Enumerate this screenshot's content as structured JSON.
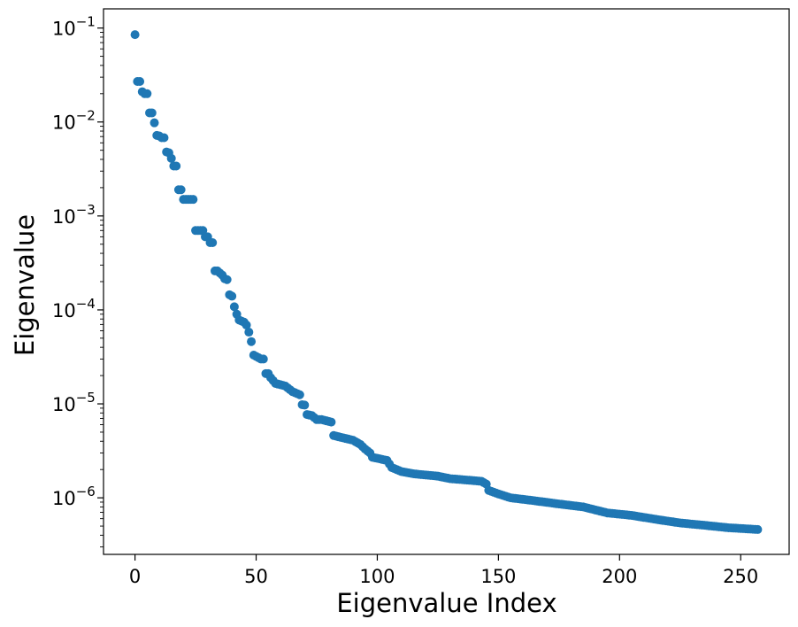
{
  "chart_data": {
    "type": "scatter",
    "xlabel": "Eigenvalue Index",
    "ylabel": "Eigenvalue",
    "xlim": [
      -13,
      270
    ],
    "ylim": [
      2.5e-07,
      0.16
    ],
    "yscale": "log",
    "grid": false,
    "marker_color": "#1f77b4",
    "x_ticks": [
      {
        "value": 0,
        "label": "0"
      },
      {
        "value": 50,
        "label": "50"
      },
      {
        "value": 100,
        "label": "100"
      },
      {
        "value": 150,
        "label": "150"
      },
      {
        "value": 200,
        "label": "200"
      },
      {
        "value": 250,
        "label": "250"
      }
    ],
    "y_ticks": [
      {
        "value": 1e-06,
        "base": "10",
        "exp": "−6"
      },
      {
        "value": 1e-05,
        "base": "10",
        "exp": "−5"
      },
      {
        "value": 0.0001,
        "base": "10",
        "exp": "−4"
      },
      {
        "value": 0.001,
        "base": "10",
        "exp": "−3"
      },
      {
        "value": 0.01,
        "base": "10",
        "exp": "−2"
      },
      {
        "value": 0.1,
        "base": "10",
        "exp": "−1"
      }
    ],
    "anchors": [
      [
        0,
        0.085
      ],
      [
        1,
        0.027
      ],
      [
        2,
        0.027
      ],
      [
        3,
        0.021
      ],
      [
        4,
        0.02
      ],
      [
        5,
        0.02
      ],
      [
        6,
        0.0125
      ],
      [
        7,
        0.0125
      ],
      [
        8,
        0.0098
      ],
      [
        9,
        0.0072
      ],
      [
        10,
        0.0071
      ],
      [
        11,
        0.0068
      ],
      [
        12,
        0.0068
      ],
      [
        13,
        0.0048
      ],
      [
        14,
        0.0047
      ],
      [
        15,
        0.0041
      ],
      [
        16,
        0.0034
      ],
      [
        17,
        0.0034
      ],
      [
        18,
        0.0019
      ],
      [
        19,
        0.0019
      ],
      [
        20,
        0.0015
      ],
      [
        24,
        0.0015
      ],
      [
        25,
        0.0007
      ],
      [
        28,
        0.0007
      ],
      [
        29,
        0.0006
      ],
      [
        30,
        0.0006
      ],
      [
        31,
        0.00052
      ],
      [
        32,
        0.00052
      ],
      [
        33,
        0.00026
      ],
      [
        34,
        0.00026
      ],
      [
        36,
        0.000235
      ],
      [
        37,
        0.000215
      ],
      [
        38,
        0.00021
      ],
      [
        39,
        0.000145
      ],
      [
        40,
        0.00014
      ],
      [
        41,
        0.000108
      ],
      [
        42,
        9e-05
      ],
      [
        43,
        7.8e-05
      ],
      [
        45,
        7.4e-05
      ],
      [
        46,
        6.9e-05
      ],
      [
        47,
        5.8e-05
      ],
      [
        48,
        4.6e-05
      ],
      [
        49,
        3.3e-05
      ],
      [
        50,
        3.2e-05
      ],
      [
        52,
        3e-05
      ],
      [
        53,
        3e-05
      ],
      [
        54,
        2.1e-05
      ],
      [
        55,
        2.1e-05
      ],
      [
        56,
        1.9e-05
      ],
      [
        58,
        1.65e-05
      ],
      [
        62,
        1.55e-05
      ],
      [
        65,
        1.35e-05
      ],
      [
        68,
        1.25e-05
      ],
      [
        69,
        9.8e-06
      ],
      [
        70,
        9.7e-06
      ],
      [
        71,
        7.7e-06
      ],
      [
        73,
        7.5e-06
      ],
      [
        75,
        6.8e-06
      ],
      [
        77,
        6.8e-06
      ],
      [
        80,
        6.5e-06
      ],
      [
        81,
        6.4e-06
      ],
      [
        82,
        4.6e-06
      ],
      [
        85,
        4.4e-06
      ],
      [
        90,
        4.1e-06
      ],
      [
        93,
        3.7e-06
      ],
      [
        95,
        3.3e-06
      ],
      [
        97,
        3e-06
      ],
      [
        98,
        2.7e-06
      ],
      [
        104,
        2.5e-06
      ],
      [
        106,
        2.1e-06
      ],
      [
        108,
        2e-06
      ],
      [
        110,
        1.9e-06
      ],
      [
        115,
        1.8e-06
      ],
      [
        125,
        1.7e-06
      ],
      [
        130,
        1.6e-06
      ],
      [
        143,
        1.5e-06
      ],
      [
        145,
        1.4e-06
      ],
      [
        146,
        1.2e-06
      ],
      [
        150,
        1.1e-06
      ],
      [
        155,
        1e-06
      ],
      [
        165,
        9.3e-07
      ],
      [
        175,
        8.6e-07
      ],
      [
        185,
        8e-07
      ],
      [
        195,
        6.9e-07
      ],
      [
        205,
        6.5e-07
      ],
      [
        215,
        5.9e-07
      ],
      [
        225,
        5.4e-07
      ],
      [
        235,
        5.1e-07
      ],
      [
        245,
        4.8e-07
      ],
      [
        257,
        4.6e-07
      ]
    ]
  }
}
